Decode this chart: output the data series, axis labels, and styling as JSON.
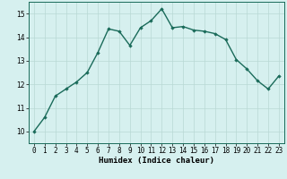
{
  "x": [
    0,
    1,
    2,
    3,
    4,
    5,
    6,
    7,
    8,
    9,
    10,
    11,
    12,
    13,
    14,
    15,
    16,
    17,
    18,
    19,
    20,
    21,
    22,
    23
  ],
  "y": [
    10.0,
    10.6,
    11.5,
    11.8,
    12.1,
    12.5,
    13.35,
    14.35,
    14.25,
    13.65,
    14.4,
    14.7,
    15.2,
    14.4,
    14.45,
    14.3,
    14.25,
    14.15,
    13.9,
    13.05,
    12.65,
    12.15,
    11.8,
    12.35
  ],
  "xlabel": "Humidex (Indice chaleur)",
  "xlim": [
    -0.5,
    23.5
  ],
  "ylim": [
    9.5,
    15.5
  ],
  "yticks": [
    10,
    11,
    12,
    13,
    14,
    15
  ],
  "xticks": [
    0,
    1,
    2,
    3,
    4,
    5,
    6,
    7,
    8,
    9,
    10,
    11,
    12,
    13,
    14,
    15,
    16,
    17,
    18,
    19,
    20,
    21,
    22,
    23
  ],
  "line_color": "#1a6b5a",
  "marker": "D",
  "marker_size": 1.8,
  "line_width": 1.0,
  "bg_color": "#d6f0ef",
  "grid_color": "#b8d8d4",
  "axis_fontsize": 6.0,
  "tick_fontsize": 5.5,
  "xlabel_fontsize": 6.5
}
